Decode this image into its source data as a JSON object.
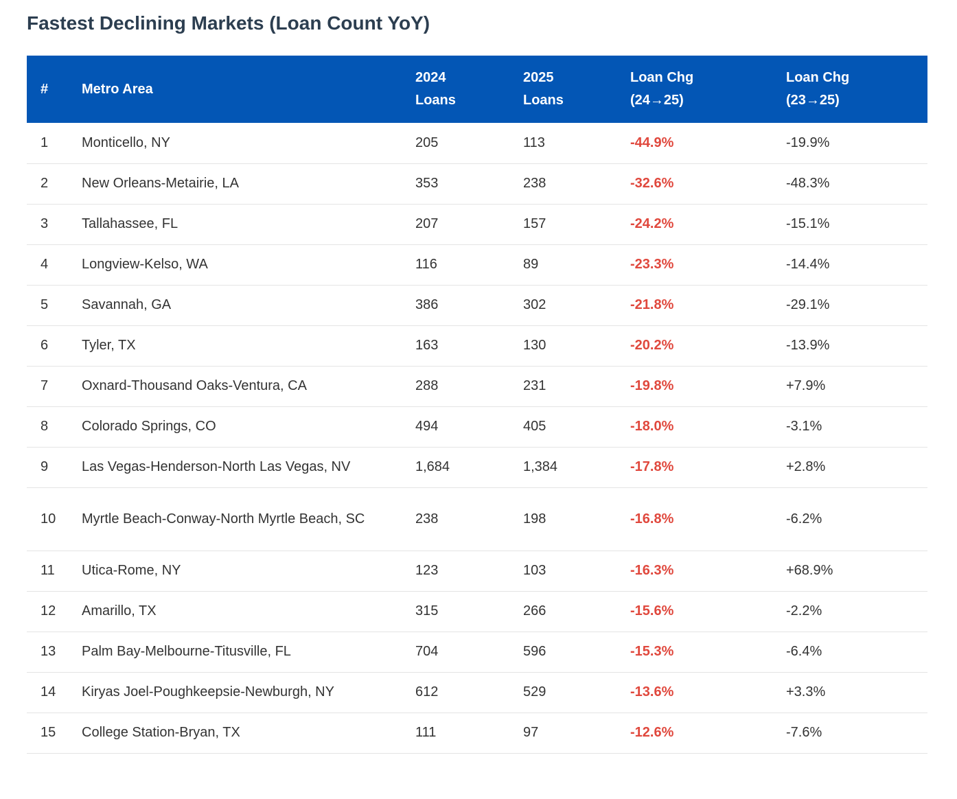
{
  "title": "Fastest Declining Markets (Loan Count YoY)",
  "colors": {
    "header_bg": "#0356b5",
    "negative_change": "#e0483d",
    "title": "#2c3e50"
  },
  "columns": {
    "rank": "#",
    "metro": "Metro Area",
    "loans_2024_line1": "2024",
    "loans_2024_line2": "Loans",
    "loans_2025_line1": "2025",
    "loans_2025_line2": "Loans",
    "chg_24_25_line1": "Loan Chg",
    "chg_24_25_line2": "(24→25)",
    "chg_23_25_line1": "Loan Chg",
    "chg_23_25_line2": "(23→25)"
  },
  "rows": [
    {
      "rank": "1",
      "metro": "Monticello, NY",
      "loans_2024": "205",
      "loans_2025": "113",
      "chg_24_25": "-44.9%",
      "chg_23_25": "-19.9%"
    },
    {
      "rank": "2",
      "metro": "New Orleans-Metairie, LA",
      "loans_2024": "353",
      "loans_2025": "238",
      "chg_24_25": "-32.6%",
      "chg_23_25": "-48.3%"
    },
    {
      "rank": "3",
      "metro": "Tallahassee, FL",
      "loans_2024": "207",
      "loans_2025": "157",
      "chg_24_25": "-24.2%",
      "chg_23_25": "-15.1%"
    },
    {
      "rank": "4",
      "metro": "Longview-Kelso, WA",
      "loans_2024": "116",
      "loans_2025": "89",
      "chg_24_25": "-23.3%",
      "chg_23_25": "-14.4%"
    },
    {
      "rank": "5",
      "metro": "Savannah, GA",
      "loans_2024": "386",
      "loans_2025": "302",
      "chg_24_25": "-21.8%",
      "chg_23_25": "-29.1%"
    },
    {
      "rank": "6",
      "metro": "Tyler, TX",
      "loans_2024": "163",
      "loans_2025": "130",
      "chg_24_25": "-20.2%",
      "chg_23_25": "-13.9%"
    },
    {
      "rank": "7",
      "metro": "Oxnard-Thousand Oaks-Ventura, CA",
      "loans_2024": "288",
      "loans_2025": "231",
      "chg_24_25": "-19.8%",
      "chg_23_25": "+7.9%"
    },
    {
      "rank": "8",
      "metro": "Colorado Springs, CO",
      "loans_2024": "494",
      "loans_2025": "405",
      "chg_24_25": "-18.0%",
      "chg_23_25": "-3.1%"
    },
    {
      "rank": "9",
      "metro": "Las Vegas-Henderson-North Las Vegas, NV",
      "loans_2024": "1,684",
      "loans_2025": "1,384",
      "chg_24_25": "-17.8%",
      "chg_23_25": "+2.8%"
    },
    {
      "rank": "10",
      "metro": "Myrtle Beach-Conway-North Myrtle Beach, SC",
      "loans_2024": "238",
      "loans_2025": "198",
      "chg_24_25": "-16.8%",
      "chg_23_25": "-6.2%"
    },
    {
      "rank": "11",
      "metro": "Utica-Rome, NY",
      "loans_2024": "123",
      "loans_2025": "103",
      "chg_24_25": "-16.3%",
      "chg_23_25": "+68.9%"
    },
    {
      "rank": "12",
      "metro": "Amarillo, TX",
      "loans_2024": "315",
      "loans_2025": "266",
      "chg_24_25": "-15.6%",
      "chg_23_25": "-2.2%"
    },
    {
      "rank": "13",
      "metro": "Palm Bay-Melbourne-Titusville, FL",
      "loans_2024": "704",
      "loans_2025": "596",
      "chg_24_25": "-15.3%",
      "chg_23_25": "-6.4%"
    },
    {
      "rank": "14",
      "metro": "Kiryas Joel-Poughkeepsie-Newburgh, NY",
      "loans_2024": "612",
      "loans_2025": "529",
      "chg_24_25": "-13.6%",
      "chg_23_25": "+3.3%"
    },
    {
      "rank": "15",
      "metro": "College Station-Bryan, TX",
      "loans_2024": "111",
      "loans_2025": "97",
      "chg_24_25": "-12.6%",
      "chg_23_25": "-7.6%"
    }
  ]
}
